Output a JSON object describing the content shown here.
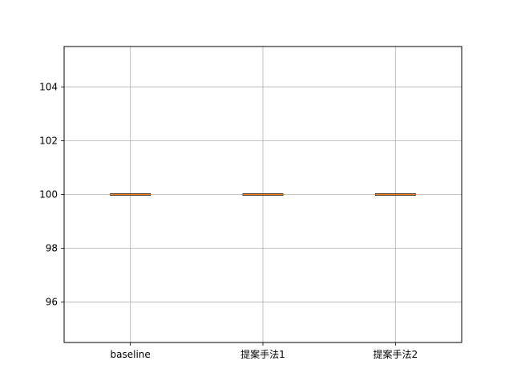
{
  "chart_data": {
    "type": "box",
    "title": "",
    "xlabel": "",
    "ylabel": "",
    "categories": [
      "baseline",
      "提案手法1",
      "提案手法2"
    ],
    "boxes": [
      {
        "label": "baseline",
        "min": 100,
        "q1": 100,
        "median": 100,
        "q3": 100,
        "max": 100
      },
      {
        "label": "提案手法1",
        "min": 100,
        "q1": 100,
        "median": 100,
        "q3": 100,
        "max": 100
      },
      {
        "label": "提案手法2",
        "min": 100,
        "q1": 100,
        "median": 100,
        "q3": 100,
        "max": 100
      }
    ],
    "ylim": [
      94.5,
      105.5
    ],
    "yticks": [
      96,
      98,
      100,
      102,
      104
    ],
    "grid": true,
    "colors": {
      "median": "#ff7f0e",
      "box": "#000000",
      "grid": "#b0b0b0"
    }
  }
}
